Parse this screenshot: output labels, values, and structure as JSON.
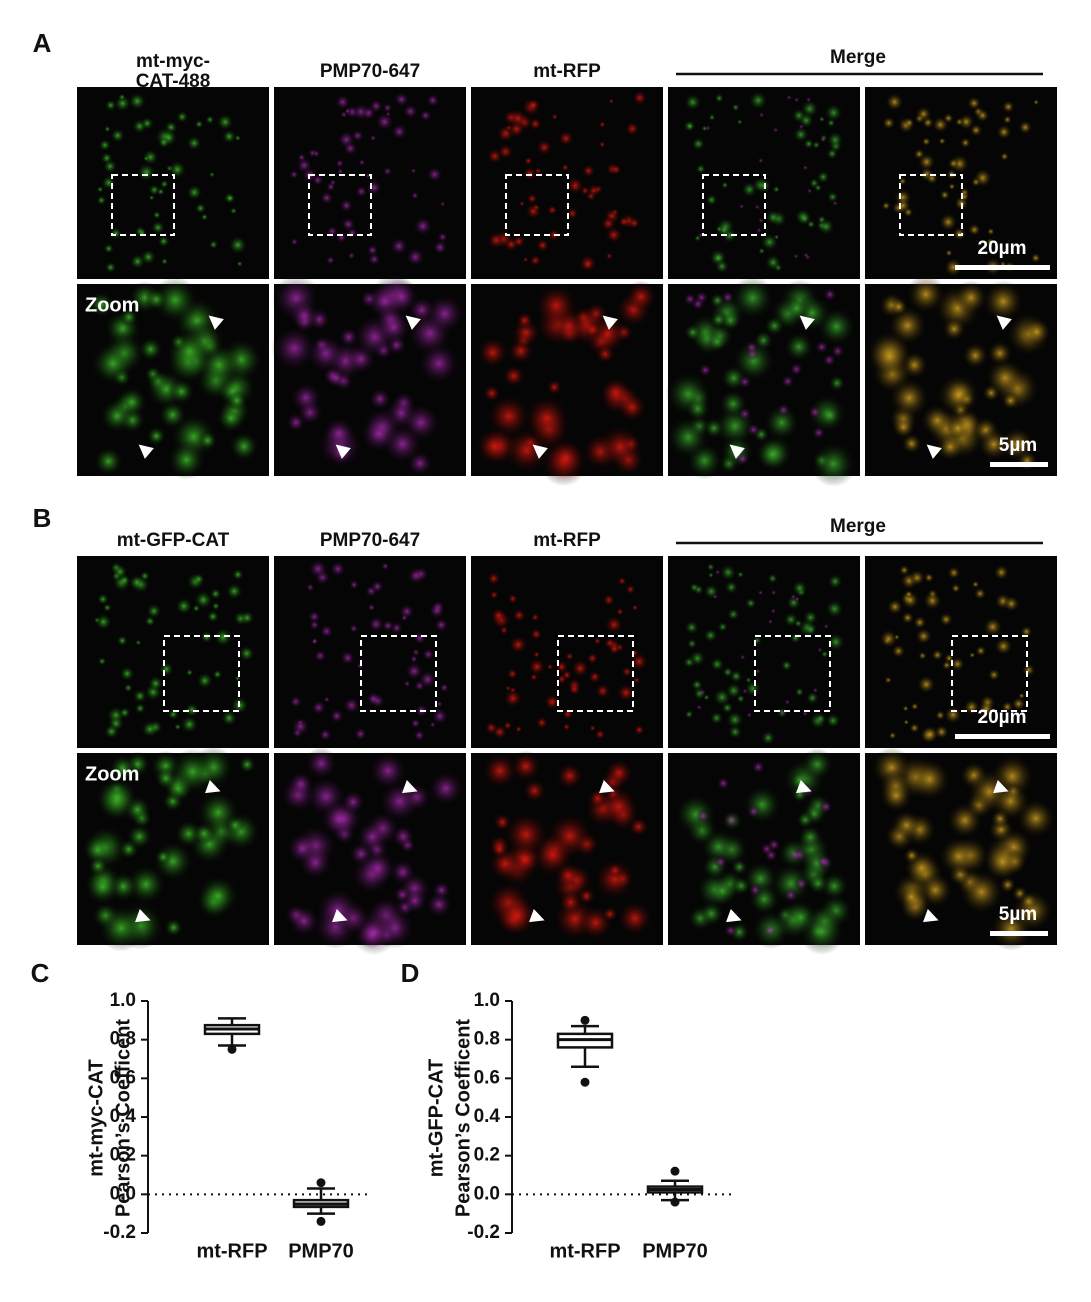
{
  "panel_a": {
    "label": "A",
    "columns": [
      "mt-myc-\nCAT-488",
      "PMP70-647",
      "mt-RFP"
    ],
    "merge": "Merge",
    "zoom": "Zoom",
    "scale_main": "20µm",
    "scale_zoom": "5µm"
  },
  "panel_b": {
    "label": "B",
    "columns": [
      "mt-GFP-CAT",
      "PMP70-647",
      "mt-RFP"
    ],
    "merge": "Merge",
    "zoom": "Zoom",
    "scale_main": "20µm",
    "scale_zoom": "5µm"
  },
  "chart_data": [
    {
      "type": "box",
      "label": "C",
      "y_label": [
        "mt-myc-CAT",
        "Pearson’s Coefficent"
      ],
      "categories": [
        "mt-RFP",
        "PMP70"
      ],
      "boxes": [
        {
          "whisker_low": 0.77,
          "q1": 0.83,
          "median": 0.855,
          "q3": 0.875,
          "whisker_high": 0.91,
          "outliers": [
            0.75
          ]
        },
        {
          "whisker_low": -0.1,
          "q1": -0.065,
          "median": -0.05,
          "q3": -0.03,
          "whisker_high": 0.03,
          "outliers": [
            0.06,
            -0.14
          ]
        }
      ],
      "ylim": [
        -0.2,
        1.0
      ],
      "yticks": [
        {
          "value": 1.0,
          "label": "1.0"
        },
        0.8,
        0.6,
        0.4,
        0.2,
        {
          "value": 0,
          "label": "0.0"
        },
        -0.2
      ]
    },
    {
      "type": "box",
      "label": "D",
      "y_label": [
        "mt-GFP-CAT",
        "Pearson’s Coefficent"
      ],
      "categories": [
        "mt-RFP",
        "PMP70"
      ],
      "boxes": [
        {
          "whisker_low": 0.66,
          "q1": 0.76,
          "median": 0.8,
          "q3": 0.83,
          "whisker_high": 0.87,
          "outliers": [
            0.9,
            0.58
          ]
        },
        {
          "whisker_low": -0.03,
          "q1": 0.01,
          "median": 0.025,
          "q3": 0.04,
          "whisker_high": 0.07,
          "outliers": [
            0.12,
            -0.04
          ]
        }
      ],
      "ylim": [
        -0.2,
        1.0
      ],
      "yticks": [
        {
          "value": 1.0,
          "label": "1.0"
        },
        0.8,
        0.6,
        0.4,
        0.2,
        {
          "value": 0,
          "label": "0.0"
        },
        -0.2
      ]
    }
  ]
}
